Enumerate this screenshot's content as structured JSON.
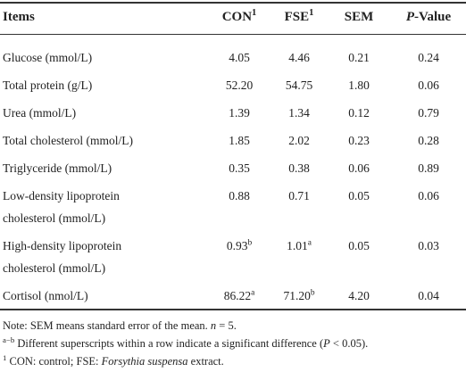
{
  "table": {
    "header": [
      [
        "Items"
      ],
      [
        "CON",
        {
          "text": "1",
          "style": "sup"
        }
      ],
      [
        "FSE",
        {
          "text": "1",
          "style": "sup"
        }
      ],
      [
        "SEM"
      ],
      [
        {
          "text": "P",
          "style": "italic"
        },
        "-Value"
      ]
    ],
    "rows": [
      {
        "label": [
          "Glucose (mmol/L)"
        ],
        "values": [
          [
            "4.05"
          ],
          [
            "4.46"
          ],
          [
            "0.21"
          ],
          [
            "0.24"
          ]
        ]
      },
      {
        "label": [
          "Total protein (g/L)"
        ],
        "values": [
          [
            "52.20"
          ],
          [
            "54.75"
          ],
          [
            "1.80"
          ],
          [
            "0.06"
          ]
        ]
      },
      {
        "label": [
          "Urea (mmol/L)"
        ],
        "values": [
          [
            "1.39"
          ],
          [
            "1.34"
          ],
          [
            "0.12"
          ],
          [
            "0.79"
          ]
        ]
      },
      {
        "label": [
          "Total cholesterol (mmol/L)"
        ],
        "values": [
          [
            "1.85"
          ],
          [
            "2.02"
          ],
          [
            "0.23"
          ],
          [
            "0.28"
          ]
        ]
      },
      {
        "label": [
          "Triglyceride (mmol/L)"
        ],
        "values": [
          [
            "0.35"
          ],
          [
            "0.38"
          ],
          [
            "0.06"
          ],
          [
            "0.89"
          ]
        ]
      },
      {
        "label": [
          "Low-density lipoprotein",
          "cholesterol (mmol/L)"
        ],
        "values": [
          [
            "0.88"
          ],
          [
            "0.71"
          ],
          [
            "0.05"
          ],
          [
            "0.06"
          ]
        ]
      },
      {
        "label": [
          "High-density lipoprotein",
          "cholesterol (mmol/L)"
        ],
        "values": [
          [
            "0.93",
            {
              "text": "b",
              "style": "sup"
            }
          ],
          [
            "1.01",
            {
              "text": "a",
              "style": "sup"
            }
          ],
          [
            "0.05"
          ],
          [
            "0.03"
          ]
        ]
      },
      {
        "label": [
          "Cortisol (nmol/L)"
        ],
        "values": [
          [
            "86.22",
            {
              "text": "a",
              "style": "sup"
            }
          ],
          [
            "71.20",
            {
              "text": "b",
              "style": "sup"
            }
          ],
          [
            "4.20"
          ],
          [
            "0.04"
          ]
        ]
      }
    ],
    "notes": [
      [
        "Note: SEM means standard error of the mean. ",
        {
          "text": "n",
          "style": "italic"
        },
        " = 5."
      ],
      [
        {
          "text": "a−b",
          "style": "sup"
        },
        " Different superscripts within a row indicate a significant difference (",
        {
          "text": "P",
          "style": "italic"
        },
        " < 0.05)."
      ],
      [
        {
          "text": "1",
          "style": "sup"
        },
        " CON: control; FSE: ",
        {
          "text": "Forsythia suspensa",
          "style": "italic"
        },
        " extract."
      ]
    ]
  }
}
